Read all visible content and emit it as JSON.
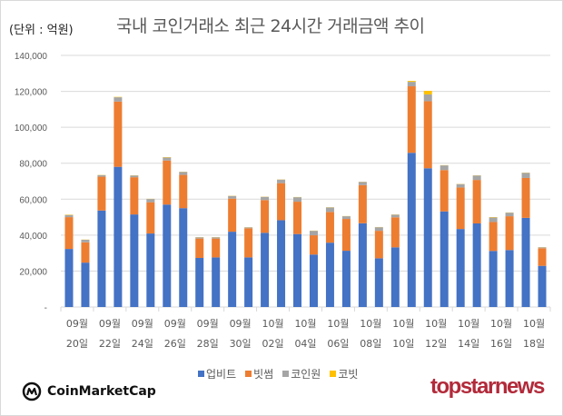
{
  "header": {
    "unit_label": "(단위 : 억원)",
    "title": "국내 코인거래소 최근 24시간 거래금액 추이"
  },
  "chart_data": {
    "type": "bar",
    "stacked": true,
    "title": "국내 코인거래소 최근 24시간 거래금액 추이",
    "unit": "억원",
    "xlabel": "",
    "ylabel": "",
    "ylim": [
      0,
      140000
    ],
    "yticks": [
      0,
      20000,
      40000,
      60000,
      80000,
      100000,
      120000,
      140000
    ],
    "ytick_labels": [
      "-",
      "20,000",
      "40,000",
      "60,000",
      "80,000",
      "100,000",
      "120,000",
      "140,000"
    ],
    "grid": true,
    "legend_position": "bottom",
    "categories": [
      "09/20",
      "09/21",
      "09/22",
      "09/23",
      "09/24",
      "09/25",
      "09/26",
      "09/27",
      "09/28",
      "09/29",
      "09/30",
      "10/01",
      "10/02",
      "10/03",
      "10/04",
      "10/05",
      "10/06",
      "10/07",
      "10/08",
      "10/09",
      "10/10",
      "10/11",
      "10/12",
      "10/13",
      "10/14",
      "10/15",
      "10/16",
      "10/17",
      "10/18",
      "10/19"
    ],
    "x_tick_labels": [
      {
        "index": 0,
        "line1": "09월",
        "line2": "20일"
      },
      {
        "index": 2,
        "line1": "09월",
        "line2": "22일"
      },
      {
        "index": 4,
        "line1": "09월",
        "line2": "24일"
      },
      {
        "index": 6,
        "line1": "09월",
        "line2": "26일"
      },
      {
        "index": 8,
        "line1": "09월",
        "line2": "28일"
      },
      {
        "index": 10,
        "line1": "09월",
        "line2": "30일"
      },
      {
        "index": 12,
        "line1": "10월",
        "line2": "02일"
      },
      {
        "index": 14,
        "line1": "10월",
        "line2": "04일"
      },
      {
        "index": 16,
        "line1": "10월",
        "line2": "06일"
      },
      {
        "index": 18,
        "line1": "10월",
        "line2": "08일"
      },
      {
        "index": 20,
        "line1": "10월",
        "line2": "10일"
      },
      {
        "index": 22,
        "line1": "10월",
        "line2": "12일"
      },
      {
        "index": 24,
        "line1": "10월",
        "line2": "14일"
      },
      {
        "index": 26,
        "line1": "10월",
        "line2": "16일"
      },
      {
        "index": 28,
        "line1": "10월",
        "line2": "18일"
      }
    ],
    "series": [
      {
        "name": "업비트",
        "color": "#4472C4",
        "values": [
          32300,
          24700,
          53700,
          78000,
          51500,
          40900,
          57000,
          55000,
          27300,
          27600,
          41900,
          27600,
          41300,
          48300,
          40600,
          29200,
          35800,
          31300,
          46600,
          27100,
          33200,
          85800,
          77200,
          53200,
          43400,
          46500,
          31200,
          31700,
          49600,
          22900
        ]
      },
      {
        "name": "빗썸",
        "color": "#ED7D31",
        "values": [
          17700,
          11300,
          18800,
          36300,
          20700,
          17400,
          24500,
          18500,
          10800,
          10500,
          18400,
          16200,
          18200,
          20600,
          18000,
          10700,
          17100,
          17700,
          21200,
          15300,
          16700,
          37000,
          37300,
          23000,
          23100,
          24200,
          16100,
          18800,
          22200,
          9800
        ]
      },
      {
        "name": "코인원",
        "color": "#A5A5A5",
        "values": [
          1200,
          1400,
          900,
          2400,
          1000,
          1800,
          1700,
          1700,
          700,
          700,
          1500,
          500,
          1800,
          2000,
          2500,
          2500,
          2500,
          1500,
          1800,
          2000,
          1500,
          2500,
          3800,
          2600,
          1900,
          2500,
          2500,
          2000,
          2900,
          500
        ]
      },
      {
        "name": "코빗",
        "color": "#FFC000",
        "values": [
          200,
          100,
          100,
          200,
          100,
          100,
          200,
          100,
          100,
          100,
          100,
          100,
          100,
          100,
          100,
          100,
          100,
          100,
          100,
          100,
          100,
          500,
          2000,
          100,
          100,
          100,
          200,
          100,
          100,
          100
        ]
      }
    ]
  },
  "legend": {
    "items": [
      {
        "label": "업비트",
        "color": "#4472C4"
      },
      {
        "label": "빗썸",
        "color": "#ED7D31"
      },
      {
        "label": "코인원",
        "color": "#A5A5A5"
      },
      {
        "label": "코빗",
        "color": "#FFC000"
      }
    ]
  },
  "footer": {
    "source_logo": "CoinMarketCap",
    "brand_logo": "topstarnews"
  }
}
